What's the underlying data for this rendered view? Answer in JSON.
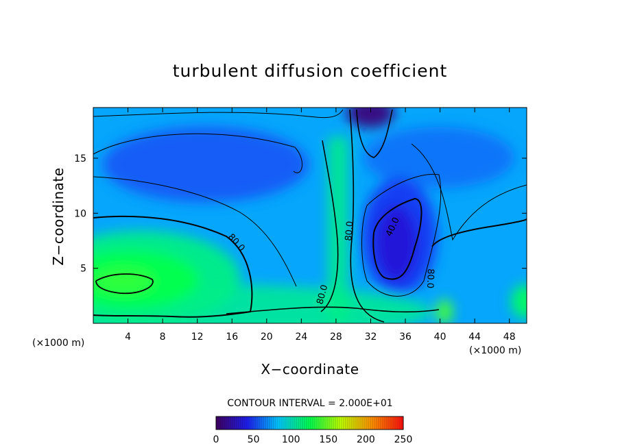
{
  "chart_data": {
    "type": "heatmap",
    "title": "turbulent diffusion coefficient",
    "xlabel": "X−coordinate",
    "ylabel": "Z−coordinate",
    "x_unit": "(×1000 m)",
    "x_unit_right": "(×1000 m)",
    "xlim": [
      0,
      50
    ],
    "ylim": [
      0,
      19.6
    ],
    "x_ticks": [
      4,
      8,
      12,
      16,
      20,
      24,
      28,
      32,
      36,
      40,
      44,
      48
    ],
    "y_ticks": [
      5,
      10,
      15
    ],
    "contour_interval_text": "CONTOUR INTERVAL = 2.000E+01",
    "contour_interval": 20,
    "contour_labels": [
      "80.0",
      "80.0",
      "80.0",
      "40.0",
      "80.0"
    ],
    "colorbar": {
      "min": 0,
      "max": 250,
      "ticks": [
        0,
        50,
        100,
        150,
        200,
        250
      ],
      "colormap": "rainbow",
      "stops": [
        "#400060",
        "#1e1ef0",
        "#00c8ff",
        "#00ff50",
        "#c0ff00",
        "#ff9000",
        "#ff1010"
      ]
    },
    "field_summary": {
      "background": 75,
      "low_core_center": [
        35,
        8.5
      ],
      "low_core_value": 35,
      "high_core_center": [
        5,
        4
      ],
      "high_core_value": 135,
      "top_jet_x": 30.5,
      "top_jet_value": 10
    }
  }
}
